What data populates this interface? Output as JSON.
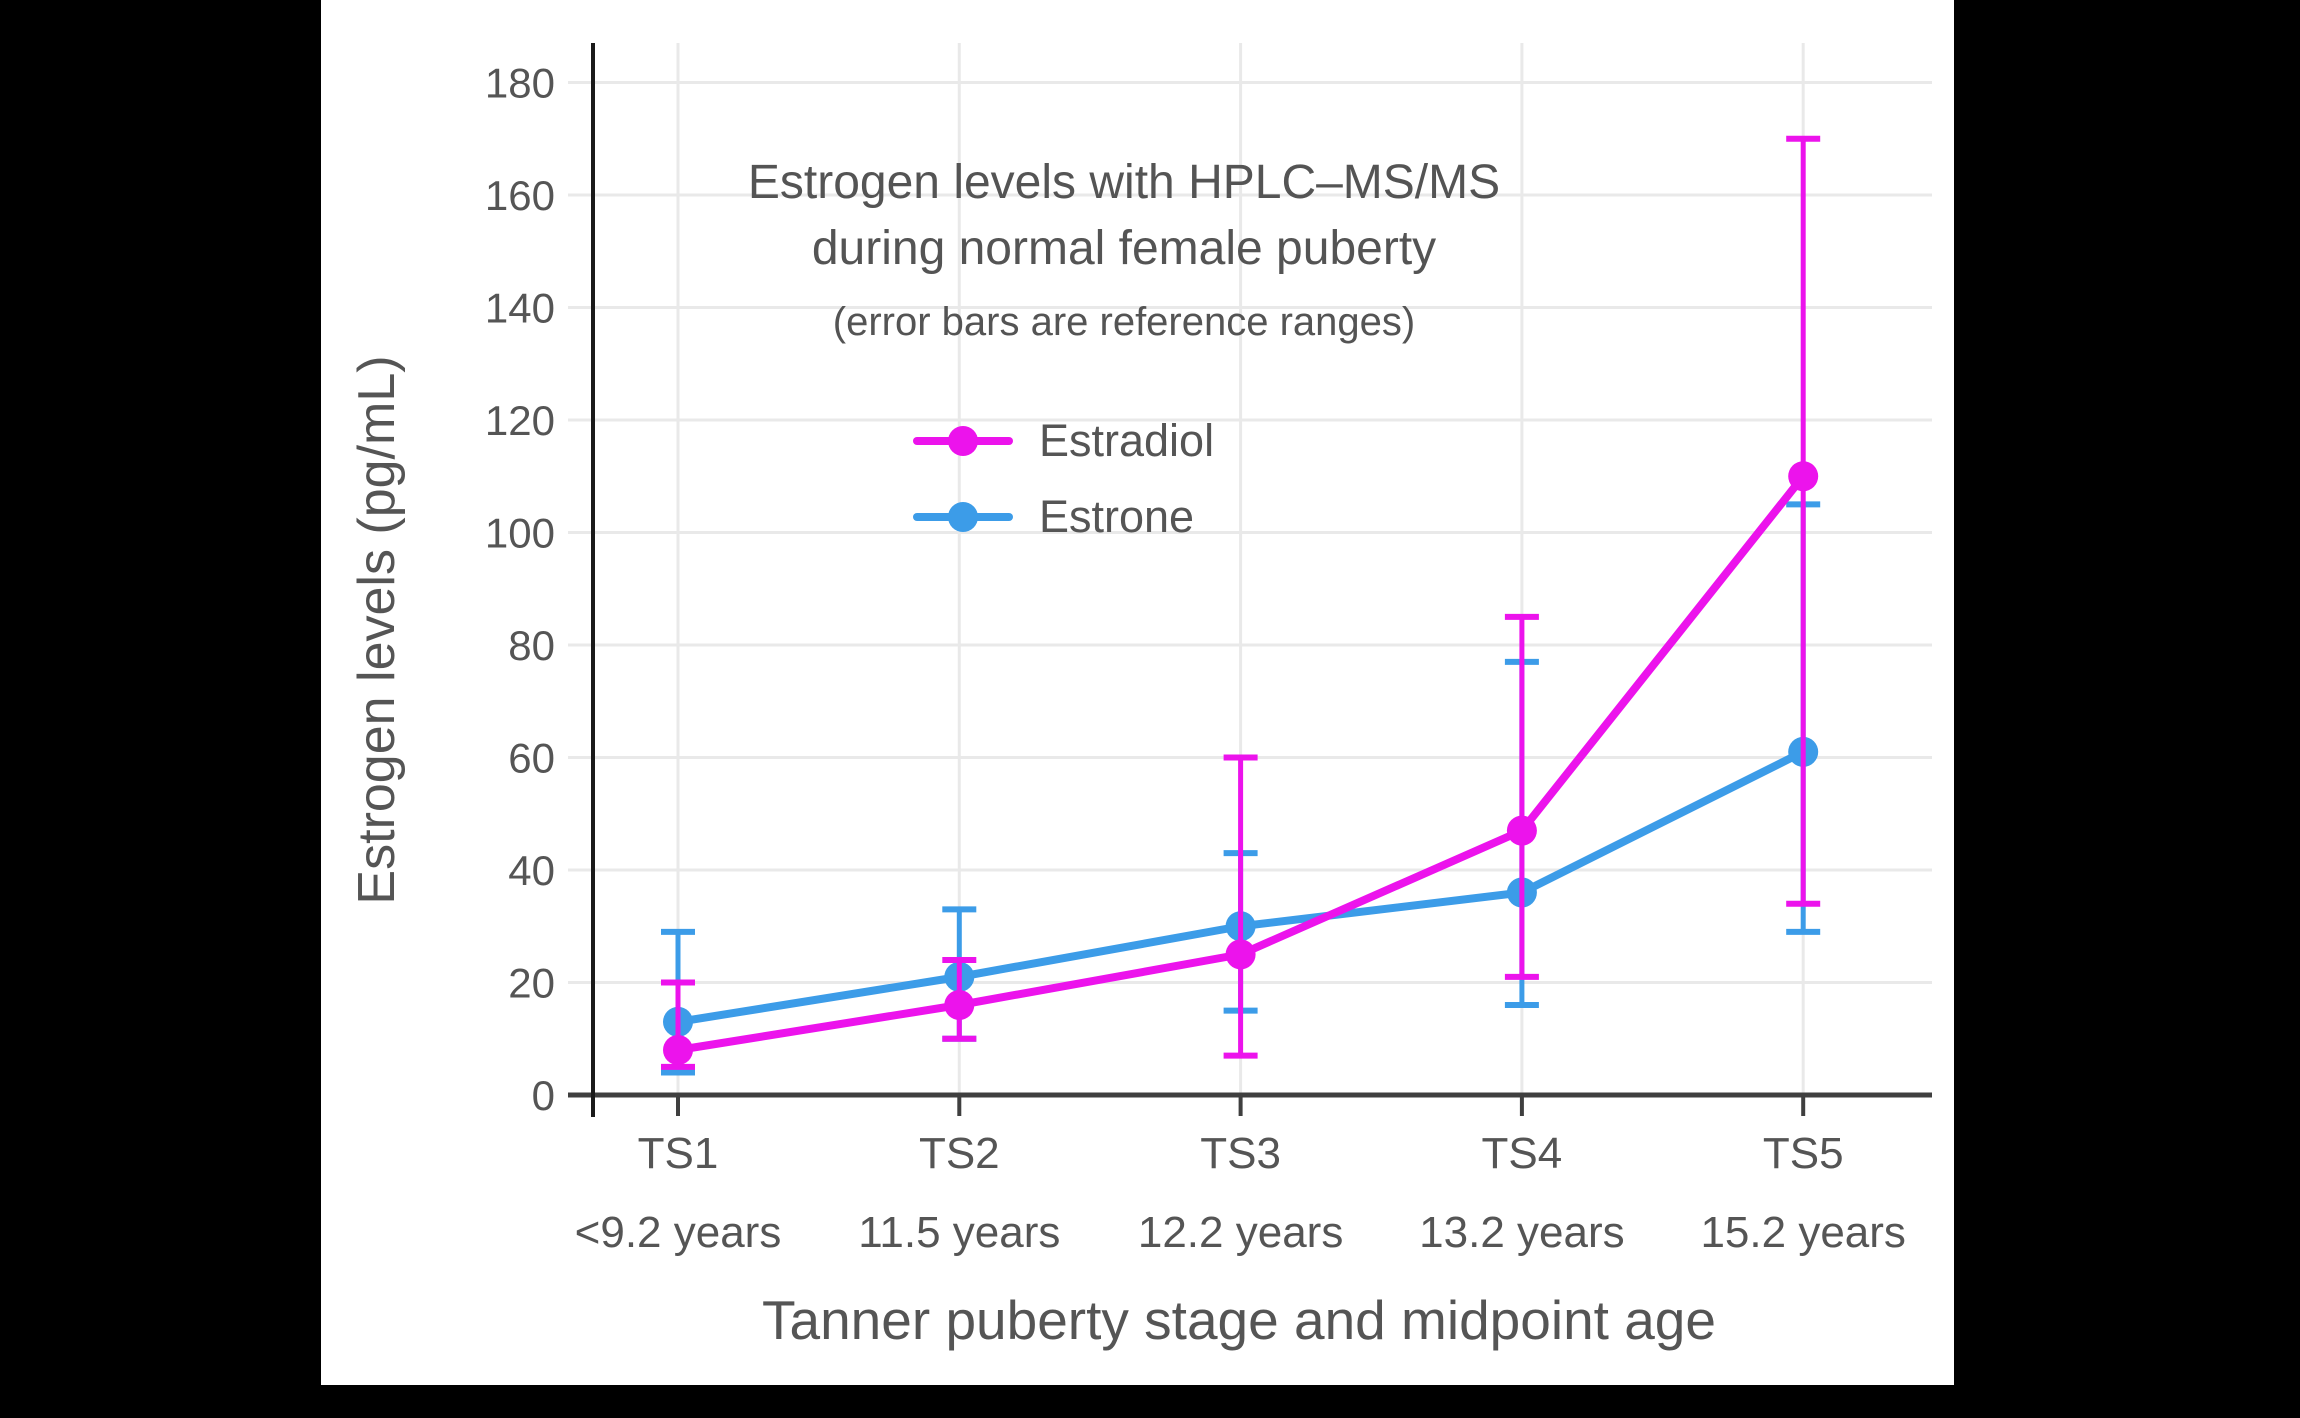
{
  "frame": {
    "bg": "#000000",
    "canvas_bg": "#ffffff"
  },
  "chart_data": {
    "type": "line",
    "title_line1": "Estrogen levels with HPLC–MS/MS",
    "title_line2": "during normal female puberty",
    "subtitle": "(error bars are reference ranges)",
    "ylabel": "Estrogen levels (pg/mL)",
    "xlabel": "Tanner puberty stage and midpoint age",
    "categories": [
      "TS1",
      "TS2",
      "TS3",
      "TS4",
      "TS5"
    ],
    "category_ages": [
      "<9.2 years",
      "11.5 years",
      "12.2 years",
      "13.2 years",
      "15.2 years"
    ],
    "y_ticks": [
      0,
      20,
      40,
      60,
      80,
      100,
      120,
      140,
      160,
      180
    ],
    "ylim": [
      0,
      187
    ],
    "grid": true,
    "error_bars": "reference ranges",
    "legend": {
      "position": "inside top-center",
      "entries": [
        "Estradiol",
        "Estrone"
      ]
    },
    "series": [
      {
        "name": "Estradiol",
        "color": "#EC13EC",
        "values": [
          8,
          16,
          25,
          47,
          110
        ],
        "range_low": [
          5,
          10,
          7,
          21,
          34
        ],
        "range_high": [
          20,
          24,
          60,
          85,
          170
        ]
      },
      {
        "name": "Estrone",
        "color": "#3C9CE8",
        "values": [
          13,
          21,
          30,
          36,
          61
        ],
        "range_low": [
          4,
          10,
          15,
          16,
          29
        ],
        "range_high": [
          29,
          33,
          43,
          77,
          105
        ]
      }
    ],
    "colors": {
      "grid": "#E9E9E9",
      "axis": "#3F3F3F",
      "spine": "#1A1A1A",
      "text": "#555555"
    }
  }
}
